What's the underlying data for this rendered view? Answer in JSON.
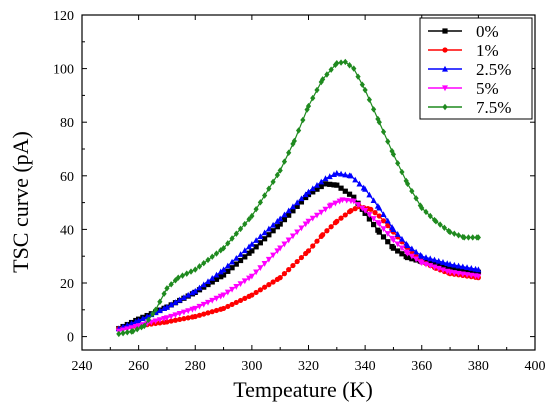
{
  "chart_data": {
    "type": "line",
    "xlabel": "Tempeature (K)",
    "ylabel": "TSC curve (pA)",
    "xlim": [
      240,
      400
    ],
    "ylim": [
      -5,
      120
    ],
    "x_ticks": [
      240,
      260,
      280,
      300,
      320,
      340,
      360,
      380,
      400
    ],
    "y_ticks": [
      0,
      20,
      40,
      60,
      80,
      100,
      120
    ],
    "grid": false,
    "legend_position": "top-right",
    "series": [
      {
        "name": "0%",
        "color": "#000000",
        "marker": "square",
        "points": [
          [
            253,
            3
          ],
          [
            260,
            6.5
          ],
          [
            270,
            11
          ],
          [
            280,
            16.5
          ],
          [
            290,
            23
          ],
          [
            300,
            32
          ],
          [
            310,
            42
          ],
          [
            320,
            53
          ],
          [
            326,
            57
          ],
          [
            330,
            56.5
          ],
          [
            336,
            52
          ],
          [
            340,
            46
          ],
          [
            345,
            39
          ],
          [
            350,
            33
          ],
          [
            355,
            29.5
          ],
          [
            360,
            28
          ],
          [
            370,
            26
          ],
          [
            380,
            24
          ]
        ]
      },
      {
        "name": "1%",
        "color": "#ff0000",
        "marker": "circle",
        "points": [
          [
            253,
            3
          ],
          [
            260,
            4
          ],
          [
            270,
            5.5
          ],
          [
            280,
            7.5
          ],
          [
            290,
            10.5
          ],
          [
            300,
            15.5
          ],
          [
            310,
            22
          ],
          [
            320,
            32
          ],
          [
            325,
            38
          ],
          [
            330,
            43
          ],
          [
            335,
            47
          ],
          [
            338,
            48.5
          ],
          [
            342,
            47.5
          ],
          [
            345,
            45
          ],
          [
            350,
            39
          ],
          [
            355,
            33
          ],
          [
            360,
            28
          ],
          [
            365,
            25.5
          ],
          [
            370,
            23.5
          ],
          [
            380,
            22
          ]
        ]
      },
      {
        "name": "2.5%",
        "color": "#0000ff",
        "marker": "triangle",
        "points": [
          [
            253,
            3
          ],
          [
            260,
            6
          ],
          [
            270,
            11
          ],
          [
            280,
            17
          ],
          [
            290,
            25
          ],
          [
            300,
            34.5
          ],
          [
            310,
            44
          ],
          [
            320,
            54
          ],
          [
            326,
            59
          ],
          [
            330,
            61
          ],
          [
            335,
            60
          ],
          [
            340,
            55
          ],
          [
            345,
            48
          ],
          [
            350,
            40
          ],
          [
            355,
            34
          ],
          [
            360,
            30
          ],
          [
            370,
            27
          ],
          [
            380,
            25
          ]
        ]
      },
      {
        "name": "5%",
        "color": "#ff00ff",
        "marker": "triangle-down",
        "points": [
          [
            253,
            2
          ],
          [
            260,
            4
          ],
          [
            270,
            7
          ],
          [
            280,
            10.5
          ],
          [
            290,
            15.5
          ],
          [
            300,
            22.5
          ],
          [
            310,
            33
          ],
          [
            320,
            43
          ],
          [
            328,
            49
          ],
          [
            332,
            51
          ],
          [
            336,
            50.5
          ],
          [
            340,
            47
          ],
          [
            345,
            42
          ],
          [
            350,
            36
          ],
          [
            355,
            31
          ],
          [
            360,
            27.5
          ],
          [
            370,
            24
          ],
          [
            380,
            22.5
          ]
        ]
      },
      {
        "name": "7.5%",
        "color": "#1f8a1f",
        "marker": "diamond",
        "points": [
          [
            253,
            1
          ],
          [
            258,
            2
          ],
          [
            262,
            4
          ],
          [
            266,
            10
          ],
          [
            270,
            18
          ],
          [
            274,
            22
          ],
          [
            280,
            25
          ],
          [
            290,
            33
          ],
          [
            300,
            45
          ],
          [
            310,
            62
          ],
          [
            315,
            73
          ],
          [
            320,
            86
          ],
          [
            325,
            96
          ],
          [
            330,
            102
          ],
          [
            333,
            102.5
          ],
          [
            336,
            100
          ],
          [
            340,
            92
          ],
          [
            345,
            80
          ],
          [
            350,
            68
          ],
          [
            355,
            57
          ],
          [
            360,
            48
          ],
          [
            365,
            43
          ],
          [
            370,
            39
          ],
          [
            375,
            37
          ],
          [
            380,
            37
          ]
        ]
      }
    ]
  }
}
